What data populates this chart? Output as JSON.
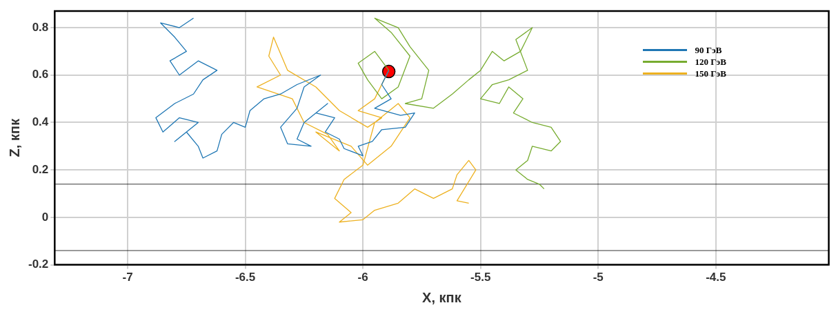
{
  "chart_data": {
    "type": "line",
    "xlabel": "X, кпк",
    "ylabel": "Z, кпк",
    "xlim": [
      -7.31,
      -4.02
    ],
    "ylim": [
      -0.2,
      0.87
    ],
    "xticks": [
      -7,
      -6.5,
      -6,
      -5.5,
      -5,
      -4.5
    ],
    "yticks": [
      -0.2,
      0,
      0.2,
      0.4,
      0.6,
      0.8
    ],
    "grid": true,
    "legend": "top right",
    "marker": "none",
    "line_style": "solid",
    "ref_lines": [
      {
        "axis": "y",
        "value": 0.14,
        "color": "#000000"
      },
      {
        "axis": "y",
        "value": -0.14,
        "color": "#000000"
      }
    ],
    "series": [
      {
        "name": "90 ГэВ",
        "color": "#1f77b4",
        "x": [
          -5.89,
          -5.92,
          -5.88,
          -5.95,
          -5.84,
          -5.78,
          -5.82,
          -5.92,
          -5.96,
          -6.02,
          -6.0,
          -6.08,
          -6.1,
          -6.16,
          -6.12,
          -6.2,
          -6.15,
          -6.25,
          -6.28,
          -6.22,
          -6.32,
          -6.35,
          -6.28,
          -6.25,
          -6.18,
          -6.28,
          -6.35,
          -6.42,
          -6.48,
          -6.5,
          -6.55,
          -6.6,
          -6.62,
          -6.68,
          -6.7,
          -6.75,
          -6.8,
          -6.7,
          -6.78,
          -6.85,
          -6.88,
          -6.8,
          -6.72,
          -6.68,
          -6.62,
          -6.7,
          -6.78,
          -6.82,
          -6.75,
          -6.8,
          -6.86,
          -6.78,
          -6.72
        ],
        "values": [
          0.62,
          0.56,
          0.5,
          0.46,
          0.43,
          0.44,
          0.38,
          0.37,
          0.32,
          0.3,
          0.26,
          0.29,
          0.33,
          0.36,
          0.42,
          0.44,
          0.48,
          0.4,
          0.33,
          0.3,
          0.31,
          0.38,
          0.46,
          0.55,
          0.6,
          0.56,
          0.52,
          0.5,
          0.45,
          0.38,
          0.4,
          0.35,
          0.28,
          0.25,
          0.3,
          0.36,
          0.32,
          0.4,
          0.42,
          0.36,
          0.42,
          0.48,
          0.52,
          0.58,
          0.62,
          0.66,
          0.6,
          0.66,
          0.7,
          0.76,
          0.82,
          0.8,
          0.84
        ]
      },
      {
        "name": "120 ГэВ",
        "color": "#77ac30",
        "x": [
          -5.89,
          -5.95,
          -6.02,
          -5.98,
          -5.92,
          -5.85,
          -5.8,
          -5.88,
          -5.95,
          -5.85,
          -5.8,
          -5.72,
          -5.75,
          -5.82,
          -5.7,
          -5.62,
          -5.55,
          -5.5,
          -5.45,
          -5.4,
          -5.33,
          -5.28,
          -5.35,
          -5.3,
          -5.38,
          -5.45,
          -5.5,
          -5.42,
          -5.38,
          -5.32,
          -5.36,
          -5.28,
          -5.2,
          -5.16,
          -5.2,
          -5.28,
          -5.3,
          -5.35,
          -5.3,
          -5.25,
          -5.23
        ],
        "values": [
          0.62,
          0.7,
          0.65,
          0.58,
          0.5,
          0.55,
          0.68,
          0.78,
          0.84,
          0.8,
          0.72,
          0.62,
          0.5,
          0.48,
          0.46,
          0.52,
          0.58,
          0.62,
          0.7,
          0.66,
          0.7,
          0.8,
          0.75,
          0.62,
          0.58,
          0.56,
          0.5,
          0.48,
          0.55,
          0.5,
          0.44,
          0.4,
          0.38,
          0.32,
          0.28,
          0.3,
          0.24,
          0.2,
          0.16,
          0.14,
          0.12
        ]
      },
      {
        "name": "150 ГэВ",
        "color": "#edb120",
        "x": [
          -5.89,
          -5.95,
          -6.02,
          -5.92,
          -5.98,
          -6.1,
          -6.2,
          -6.32,
          -6.38,
          -6.4,
          -6.35,
          -6.45,
          -6.3,
          -6.25,
          -6.15,
          -6.1,
          -6.2,
          -6.05,
          -5.98,
          -5.88,
          -5.8,
          -5.85,
          -5.95,
          -6.0,
          -6.08,
          -6.12,
          -6.05,
          -6.1,
          -6.0,
          -5.95,
          -5.85,
          -5.78,
          -5.7,
          -5.62,
          -5.6,
          -5.55,
          -5.52,
          -5.6,
          -5.55
        ],
        "values": [
          0.62,
          0.5,
          0.45,
          0.42,
          0.38,
          0.45,
          0.55,
          0.62,
          0.76,
          0.68,
          0.6,
          0.55,
          0.5,
          0.4,
          0.35,
          0.28,
          0.36,
          0.3,
          0.22,
          0.3,
          0.42,
          0.48,
          0.4,
          0.22,
          0.16,
          0.08,
          0.02,
          -0.02,
          -0.01,
          0.03,
          0.06,
          0.12,
          0.08,
          0.12,
          0.18,
          0.24,
          0.2,
          0.07,
          0.06
        ]
      },
      {
        "type": "scatter",
        "marker": "circle",
        "color": "#ff0000",
        "x": [
          -5.89
        ],
        "values": [
          0.615
        ]
      }
    ]
  }
}
